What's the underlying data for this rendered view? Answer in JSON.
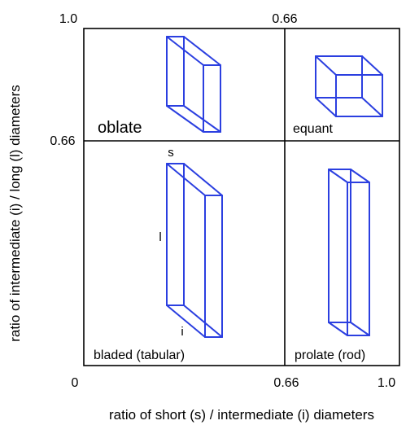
{
  "axes": {
    "x_title": "ratio of short (s) / intermediate (i) diameters",
    "y_title": "ratio of intermediate (i) / long (l) diameters",
    "x_ticks": [
      "0",
      "0.66",
      "1.0"
    ],
    "top_tick": "0.66",
    "y_ticks": [
      "1.0",
      "0.66"
    ]
  },
  "classes": {
    "oblate": "oblate",
    "equant": "equant",
    "bladed": "bladed (tabular)",
    "prolate": "prolate (rod)"
  },
  "dimension_labels": {
    "short": "s",
    "long": "l",
    "intermediate": "i"
  },
  "colors": {
    "prism_stroke": "#2b3fe0",
    "frame": "#000000"
  }
}
